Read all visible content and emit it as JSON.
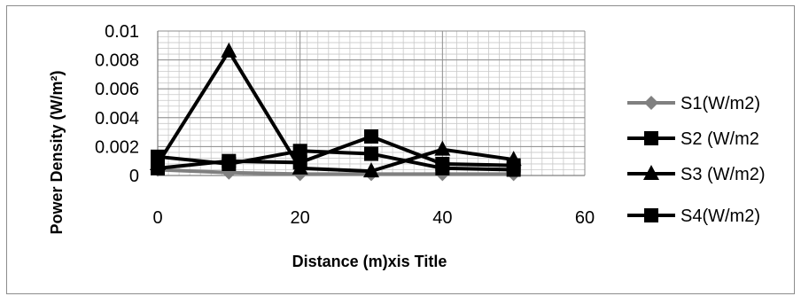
{
  "chart_data": {
    "type": "line",
    "title": "",
    "xlabel": "Distance (m)xis Title",
    "ylabel": "Power Density (W/m²)",
    "xlim": [
      0,
      60
    ],
    "ylim": [
      0,
      0.01
    ],
    "x_ticks": [
      "0",
      "20",
      "40",
      "60"
    ],
    "y_ticks": [
      "0",
      "0.002",
      "0.004",
      "0.006",
      "0.008",
      "0.01"
    ],
    "grid": true,
    "legend_position": "right",
    "x": [
      0,
      10,
      20,
      30,
      40,
      50
    ],
    "series": [
      {
        "name": "S1(W/m2)",
        "marker": "diamond",
        "color": "#808080",
        "values": [
          0.0004,
          0.0002,
          0.0001,
          0.0001,
          0.0001,
          0.0001
        ]
      },
      {
        "name": "S2 (W/m2",
        "marker": "square",
        "color": "#000000",
        "values": [
          0.0013,
          0.0008,
          0.0017,
          0.0015,
          0.0005,
          0.0004
        ]
      },
      {
        "name": "S3 (W/m2)",
        "marker": "triangle",
        "color": "#000000",
        "values": [
          0.0008,
          0.0086,
          0.0005,
          0.0003,
          0.0018,
          0.0011
        ]
      },
      {
        "name": "S4(W/m2)",
        "marker": "square",
        "color": "#000000",
        "values": [
          0.0005,
          0.001,
          0.0009,
          0.0027,
          0.0008,
          0.0007
        ]
      }
    ]
  }
}
